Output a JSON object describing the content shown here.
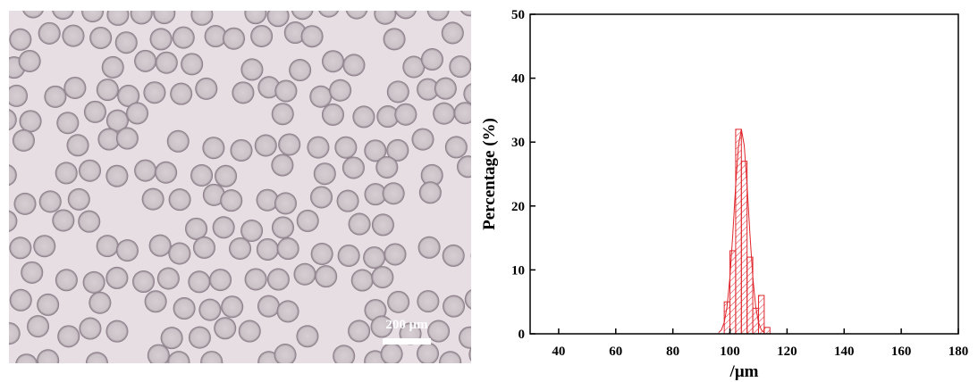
{
  "image": {
    "scale_bar": "200 μm"
  },
  "chart_data": {
    "type": "histogram",
    "y_label": "Percentage (%)",
    "x_label": "/μm",
    "bins": [
      98,
      100,
      102,
      104,
      106,
      108,
      110,
      112,
      114
    ],
    "values": [
      5,
      13,
      32,
      27,
      12,
      4,
      6,
      1
    ],
    "color": "#e0262b",
    "fit": {
      "x": [
        96,
        97,
        98,
        99,
        100,
        101,
        102,
        103,
        104,
        105,
        106,
        107,
        108,
        109,
        110,
        111,
        112
      ],
      "values": [
        0.2,
        0.6,
        1.8,
        4.3,
        8.9,
        15.6,
        23.2,
        29.5,
        32,
        29.5,
        23.2,
        15.6,
        8.9,
        4.3,
        1.8,
        0.6,
        0.2
      ],
      "color": "#e0262b"
    },
    "xlim": [
      30,
      180
    ],
    "xticks": [
      40,
      60,
      80,
      100,
      120,
      140,
      160,
      180
    ],
    "ylim": [
      0,
      50
    ],
    "yticks": [
      0,
      10,
      20,
      30,
      40,
      50
    ]
  }
}
